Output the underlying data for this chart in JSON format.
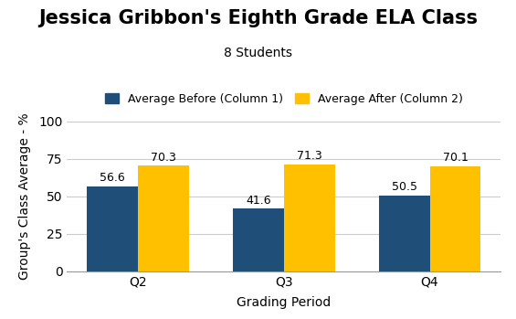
{
  "title": "Jessica Gribbon's Eighth Grade ELA Class",
  "subtitle": "8 Students",
  "xlabel": "Grading Period",
  "ylabel": "Group's Class Average - %",
  "categories": [
    "Q2",
    "Q3",
    "Q4"
  ],
  "before_values": [
    56.6,
    41.6,
    50.5
  ],
  "after_values": [
    70.3,
    71.3,
    70.1
  ],
  "before_color": "#1F4E79",
  "after_color": "#FFC000",
  "before_label": "Average Before (Column 1)",
  "after_label": "Average After (Column 2)",
  "ylim": [
    0,
    100
  ],
  "yticks": [
    0,
    25,
    50,
    75,
    100
  ],
  "bar_width": 0.35,
  "title_fontsize": 15,
  "subtitle_fontsize": 10,
  "label_fontsize": 10,
  "tick_fontsize": 10,
  "annotation_fontsize": 9,
  "legend_fontsize": 9,
  "background_color": "#ffffff",
  "grid_color": "#cccccc"
}
